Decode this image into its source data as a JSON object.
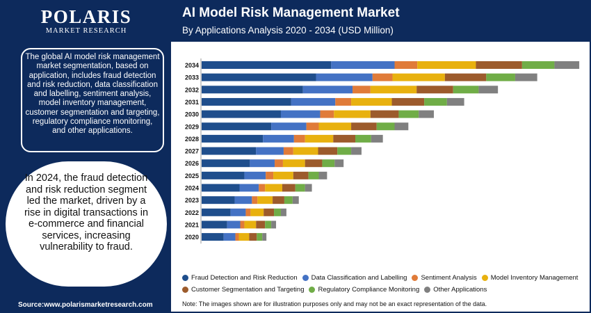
{
  "branding": {
    "logo_main": "POLARIS",
    "logo_sub": "MARKET RESEARCH"
  },
  "header": {
    "title": "AI Model Risk Management Market",
    "subtitle": "By Applications Analysis 2020 - 2034 (USD Million)"
  },
  "left_panel": {
    "description": "The global AI model risk management market segmentation, based on application, includes fraud detection and risk reduction, data classification and labelling, sentiment analysis, model inventory management, customer segmentation and targeting, regulatory compliance monitoring, and other applications.",
    "highlight": "In 2024, the fraud detection and risk reduction segment led the market, driven by a rise in digital transactions in e-commerce and financial services, increasing vulnerability to fraud.",
    "source": "Source:www.polarismarketresearch.com"
  },
  "note": "Note: The images shown are for illustration purposes only and may not be an exact representation of the data.",
  "chart_data": {
    "type": "bar",
    "orientation": "horizontal",
    "stacked": true,
    "title": "AI Model Risk Management Market",
    "subtitle": "By Applications Analysis 2020 - 2034 (USD Million)",
    "xlabel": "",
    "ylabel": "",
    "grid": false,
    "legend_position": "bottom",
    "xlim": [
      0,
      560
    ],
    "categories": [
      "2034",
      "2033",
      "2032",
      "2031",
      "2030",
      "2029",
      "2028",
      "2027",
      "2026",
      "2025",
      "2024",
      "2023",
      "2022",
      "2021",
      "2020"
    ],
    "series": [
      {
        "name": "Fraud Detection and Risk Reduction",
        "color": "#1f4e8c",
        "values": [
          188,
          166,
          147,
          130,
          115,
          101,
          89,
          79,
          70,
          62,
          55,
          48,
          42,
          37,
          32
        ]
      },
      {
        "name": "Data Classification and Labelling",
        "color": "#4472c4",
        "values": [
          92,
          82,
          72,
          64,
          57,
          51,
          45,
          40,
          36,
          31,
          28,
          25,
          22,
          19,
          17
        ]
      },
      {
        "name": "Sentiment Analysis",
        "color": "#e07b39",
        "values": [
          33,
          29,
          26,
          23,
          20,
          18,
          16,
          14,
          12,
          11,
          9,
          8,
          7,
          6,
          5
        ]
      },
      {
        "name": "Model Inventory Management",
        "color": "#e8b10f",
        "values": [
          85,
          76,
          67,
          59,
          53,
          47,
          41,
          36,
          32,
          29,
          25,
          22,
          19,
          17,
          15
        ]
      },
      {
        "name": "Customer Segmentation and Targeting",
        "color": "#9c5b2c",
        "values": [
          67,
          60,
          53,
          47,
          41,
          37,
          32,
          28,
          25,
          22,
          19,
          17,
          15,
          13,
          11
        ]
      },
      {
        "name": "Regulatory Compliance Monitoring",
        "color": "#70ad47",
        "values": [
          47,
          42,
          37,
          33,
          29,
          26,
          23,
          20,
          18,
          15,
          14,
          12,
          10,
          9,
          8
        ]
      },
      {
        "name": "Other Applications",
        "color": "#808080",
        "values": [
          36,
          32,
          28,
          25,
          22,
          20,
          17,
          15,
          13,
          12,
          10,
          9,
          8,
          7,
          6
        ]
      }
    ]
  }
}
